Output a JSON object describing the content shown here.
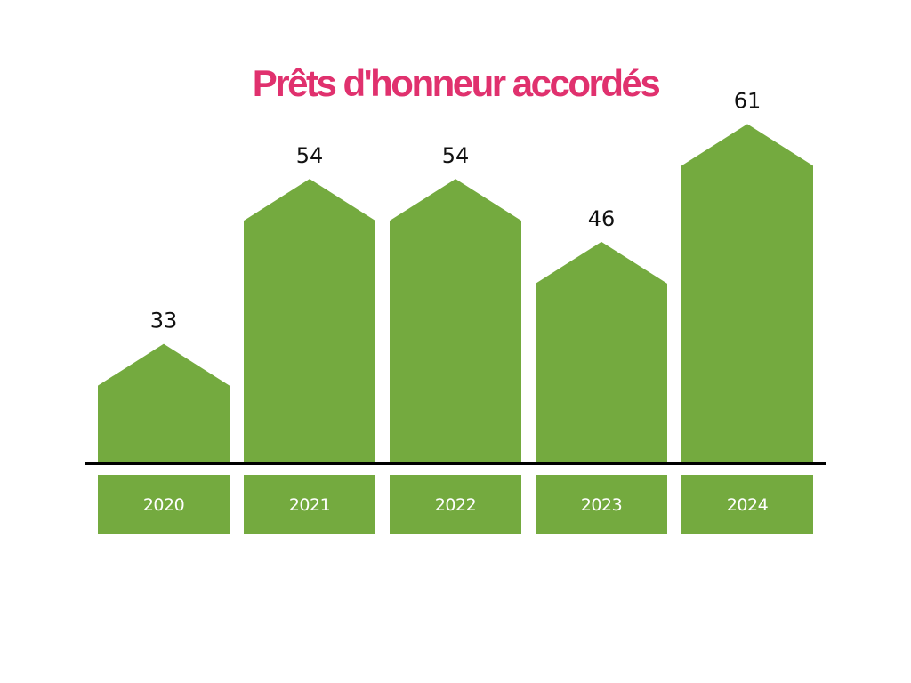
{
  "colors": {
    "title": "#e0316e",
    "bar": "#74aa3f",
    "baseline": "#000000",
    "year_text": "#ffffff",
    "value_text": "#111111"
  },
  "chart_data": {
    "type": "bar",
    "title": "Prêts d'honneur accordés",
    "categories": [
      "2020",
      "2021",
      "2022",
      "2023",
      "2024"
    ],
    "values": [
      33,
      54,
      54,
      46,
      61
    ],
    "data_labels": [
      "33",
      "54",
      "54",
      "46",
      "61"
    ],
    "bar_shape": "house-pentagon",
    "grid": false,
    "legend": "none",
    "ylim": [
      0,
      70
    ]
  }
}
